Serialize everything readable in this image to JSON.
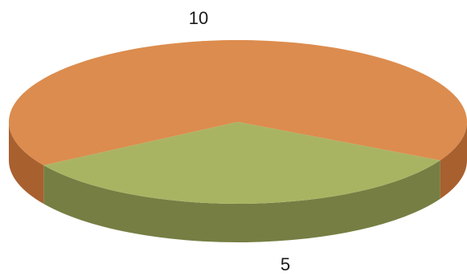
{
  "chart_data": {
    "type": "pie",
    "values": [
      10,
      5
    ],
    "data_labels": [
      "10",
      "5"
    ],
    "colors": {
      "top": [
        "#DC8C4E",
        "#A9B463"
      ],
      "side": [
        "#A8602F",
        "#767E43"
      ]
    },
    "three_d": true,
    "legend": "none"
  }
}
